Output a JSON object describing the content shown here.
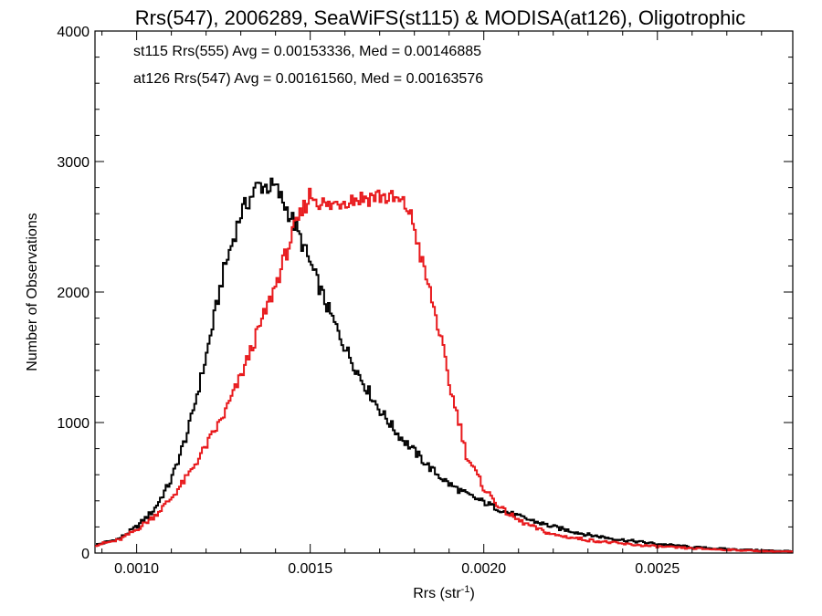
{
  "chart_data": {
    "type": "line",
    "step": true,
    "title": "Rrs(547), 2006289, SeaWiFS(st115) & MODISA(at126), Oligotrophic",
    "xlabel_main": "Rrs (str",
    "xlabel_sup": "-1",
    "xlabel_end": ")",
    "ylabel": "Number of Observations",
    "xlim": [
      0.00088,
      0.00289
    ],
    "ylim": [
      0,
      4000
    ],
    "xticks": [
      0.001,
      0.0015,
      0.002,
      0.0025
    ],
    "xtick_labels": [
      "0.0010",
      "0.0015",
      "0.0020",
      "0.0025"
    ],
    "yticks": [
      0,
      1000,
      2000,
      3000,
      4000
    ],
    "ytick_labels": [
      "0",
      "1000",
      "2000",
      "3000",
      "4000"
    ],
    "grid": false,
    "annotations": [
      {
        "text": "st115 Rrs(555) Avg = 0.00153336, Med = 0.00146885",
        "color": "#000000"
      },
      {
        "text": "at126 Rrs(547) Avg = 0.00161560, Med = 0.00163576",
        "color": "#e8191c"
      }
    ],
    "series": [
      {
        "name": "st115 Rrs(555)",
        "color": "#000000",
        "x": [
          0.00088,
          0.00095,
          0.001,
          0.00105,
          0.0011,
          0.00115,
          0.0012,
          0.00125,
          0.0013,
          0.00135,
          0.0014,
          0.00145,
          0.0015,
          0.00155,
          0.0016,
          0.00165,
          0.0017,
          0.00175,
          0.0018,
          0.00185,
          0.0019,
          0.00195,
          0.002,
          0.00205,
          0.0021,
          0.00215,
          0.0022,
          0.00225,
          0.0023,
          0.0024,
          0.0025,
          0.0026,
          0.0027,
          0.0028,
          0.00289
        ],
        "y": [
          60,
          110,
          200,
          330,
          560,
          950,
          1500,
          2150,
          2600,
          2820,
          2800,
          2550,
          2220,
          1880,
          1580,
          1320,
          1100,
          920,
          780,
          640,
          530,
          450,
          390,
          330,
          280,
          240,
          200,
          170,
          140,
          100,
          70,
          45,
          30,
          20,
          15
        ]
      },
      {
        "name": "at126 Rrs(547)",
        "color": "#e8191c",
        "x": [
          0.00088,
          0.00095,
          0.001,
          0.00105,
          0.0011,
          0.00115,
          0.0012,
          0.00125,
          0.0013,
          0.00135,
          0.0014,
          0.00145,
          0.0015,
          0.00155,
          0.0016,
          0.00165,
          0.0017,
          0.00175,
          0.00178,
          0.0018,
          0.00182,
          0.00185,
          0.00188,
          0.0019,
          0.00193,
          0.00195,
          0.002,
          0.00205,
          0.0021,
          0.00215,
          0.0022,
          0.0023,
          0.0024,
          0.0025,
          0.0026,
          0.0027,
          0.0028,
          0.00289
        ],
        "y": [
          60,
          100,
          180,
          280,
          420,
          600,
          820,
          1050,
          1350,
          1700,
          2050,
          2450,
          2750,
          2650,
          2710,
          2720,
          2740,
          2700,
          2650,
          2500,
          2250,
          1950,
          1600,
          1300,
          1000,
          750,
          500,
          340,
          250,
          190,
          140,
          100,
          70,
          50,
          35,
          25,
          15,
          10
        ]
      }
    ]
  }
}
